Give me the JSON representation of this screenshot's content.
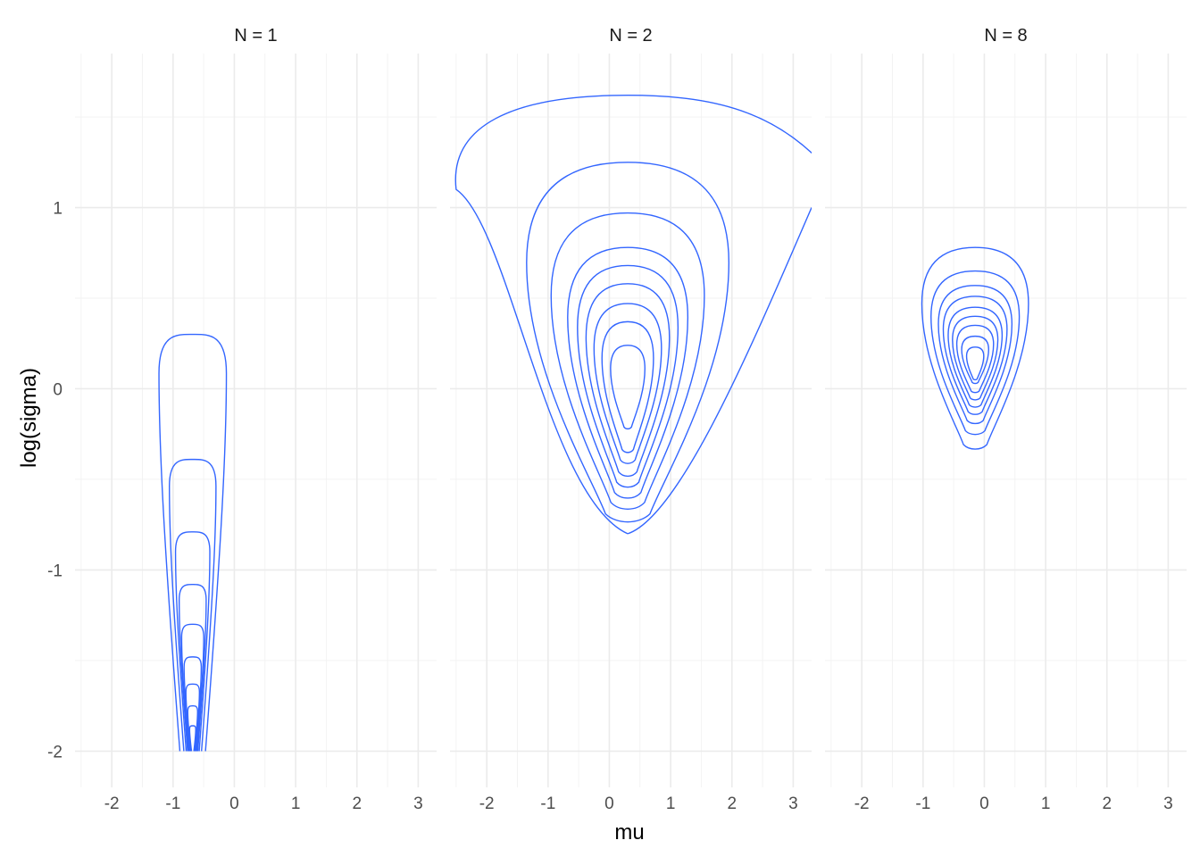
{
  "chart_data": {
    "type": "contour",
    "xlabel": "mu",
    "ylabel": "log(sigma)",
    "xlim": [
      -2.6,
      3.3
    ],
    "ylim": [
      -2.2,
      1.85
    ],
    "x_ticks": [
      -2,
      -1,
      0,
      1,
      2,
      3
    ],
    "y_ticks": [
      -2,
      -1,
      0,
      1
    ],
    "grid": true,
    "legend": "none",
    "line_color": "#3366FF",
    "panels": [
      {
        "label": "N = 1",
        "contours": [
          {
            "mu_center": -0.68,
            "logsigma_top": 0.3,
            "half_width": 0.55,
            "logsigma_bottom": -2.0,
            "shape": "open-bottom"
          },
          {
            "mu_center": -0.68,
            "logsigma_top": -0.39,
            "half_width": 0.38,
            "logsigma_bottom": -2.0,
            "shape": "open-bottom"
          },
          {
            "mu_center": -0.68,
            "logsigma_top": -0.79,
            "half_width": 0.28,
            "logsigma_bottom": -2.0,
            "shape": "open-bottom"
          },
          {
            "mu_center": -0.68,
            "logsigma_top": -1.08,
            "half_width": 0.22,
            "logsigma_bottom": -2.0,
            "shape": "open-bottom"
          },
          {
            "mu_center": -0.68,
            "logsigma_top": -1.3,
            "half_width": 0.18,
            "logsigma_bottom": -2.0,
            "shape": "open-bottom"
          },
          {
            "mu_center": -0.68,
            "logsigma_top": -1.48,
            "half_width": 0.14,
            "logsigma_bottom": -2.0,
            "shape": "open-bottom"
          },
          {
            "mu_center": -0.68,
            "logsigma_top": -1.63,
            "half_width": 0.11,
            "logsigma_bottom": -2.0,
            "shape": "open-bottom"
          },
          {
            "mu_center": -0.68,
            "logsigma_top": -1.75,
            "half_width": 0.08,
            "logsigma_bottom": -2.0,
            "shape": "open-bottom"
          },
          {
            "mu_center": -0.68,
            "logsigma_top": -1.86,
            "half_width": 0.05,
            "logsigma_bottom": -2.0,
            "shape": "open-bottom"
          }
        ]
      },
      {
        "label": "N = 2",
        "contours": [
          {
            "mu_center": 0.3,
            "logsigma_top": 1.62,
            "logsigma_bottom": -0.8,
            "mu_left": -2.6,
            "mu_right": 3.0,
            "shape": "clipped-outer"
          },
          {
            "mu_center": 0.3,
            "logsigma_top": 1.25,
            "logsigma_bottom": -0.73,
            "half_width_top": 1.65
          },
          {
            "mu_center": 0.3,
            "logsigma_top": 0.97,
            "logsigma_bottom": -0.66,
            "half_width_top": 1.25
          },
          {
            "mu_center": 0.3,
            "logsigma_top": 0.78,
            "logsigma_bottom": -0.6,
            "half_width_top": 0.98
          },
          {
            "mu_center": 0.3,
            "logsigma_top": 0.68,
            "logsigma_bottom": -0.54,
            "half_width_top": 0.82
          },
          {
            "mu_center": 0.3,
            "logsigma_top": 0.58,
            "logsigma_bottom": -0.48,
            "half_width_top": 0.68
          },
          {
            "mu_center": 0.3,
            "logsigma_top": 0.47,
            "logsigma_bottom": -0.41,
            "half_width_top": 0.55
          },
          {
            "mu_center": 0.3,
            "logsigma_top": 0.37,
            "logsigma_bottom": -0.35,
            "half_width_top": 0.42
          },
          {
            "mu_center": 0.3,
            "logsigma_top": 0.24,
            "logsigma_bottom": -0.22,
            "half_width_top": 0.28
          }
        ]
      },
      {
        "label": "N = 8",
        "contours": [
          {
            "mu_center": -0.15,
            "logsigma_top": 0.78,
            "logsigma_bottom": -0.33,
            "half_width_top": 0.87
          },
          {
            "mu_center": -0.15,
            "logsigma_top": 0.65,
            "logsigma_bottom": -0.25,
            "half_width_top": 0.72
          },
          {
            "mu_center": -0.15,
            "logsigma_top": 0.57,
            "logsigma_bottom": -0.19,
            "half_width_top": 0.6
          },
          {
            "mu_center": -0.15,
            "logsigma_top": 0.51,
            "logsigma_bottom": -0.14,
            "half_width_top": 0.52
          },
          {
            "mu_center": -0.15,
            "logsigma_top": 0.45,
            "logsigma_bottom": -0.1,
            "half_width_top": 0.44
          },
          {
            "mu_center": -0.15,
            "logsigma_top": 0.4,
            "logsigma_bottom": -0.06,
            "half_width_top": 0.37
          },
          {
            "mu_center": -0.15,
            "logsigma_top": 0.35,
            "logsigma_bottom": -0.02,
            "half_width_top": 0.3
          },
          {
            "mu_center": -0.15,
            "logsigma_top": 0.29,
            "logsigma_bottom": 0.03,
            "half_width_top": 0.22
          },
          {
            "mu_center": -0.15,
            "logsigma_top": 0.23,
            "logsigma_bottom": 0.05,
            "half_width_top": 0.14
          }
        ]
      }
    ]
  }
}
